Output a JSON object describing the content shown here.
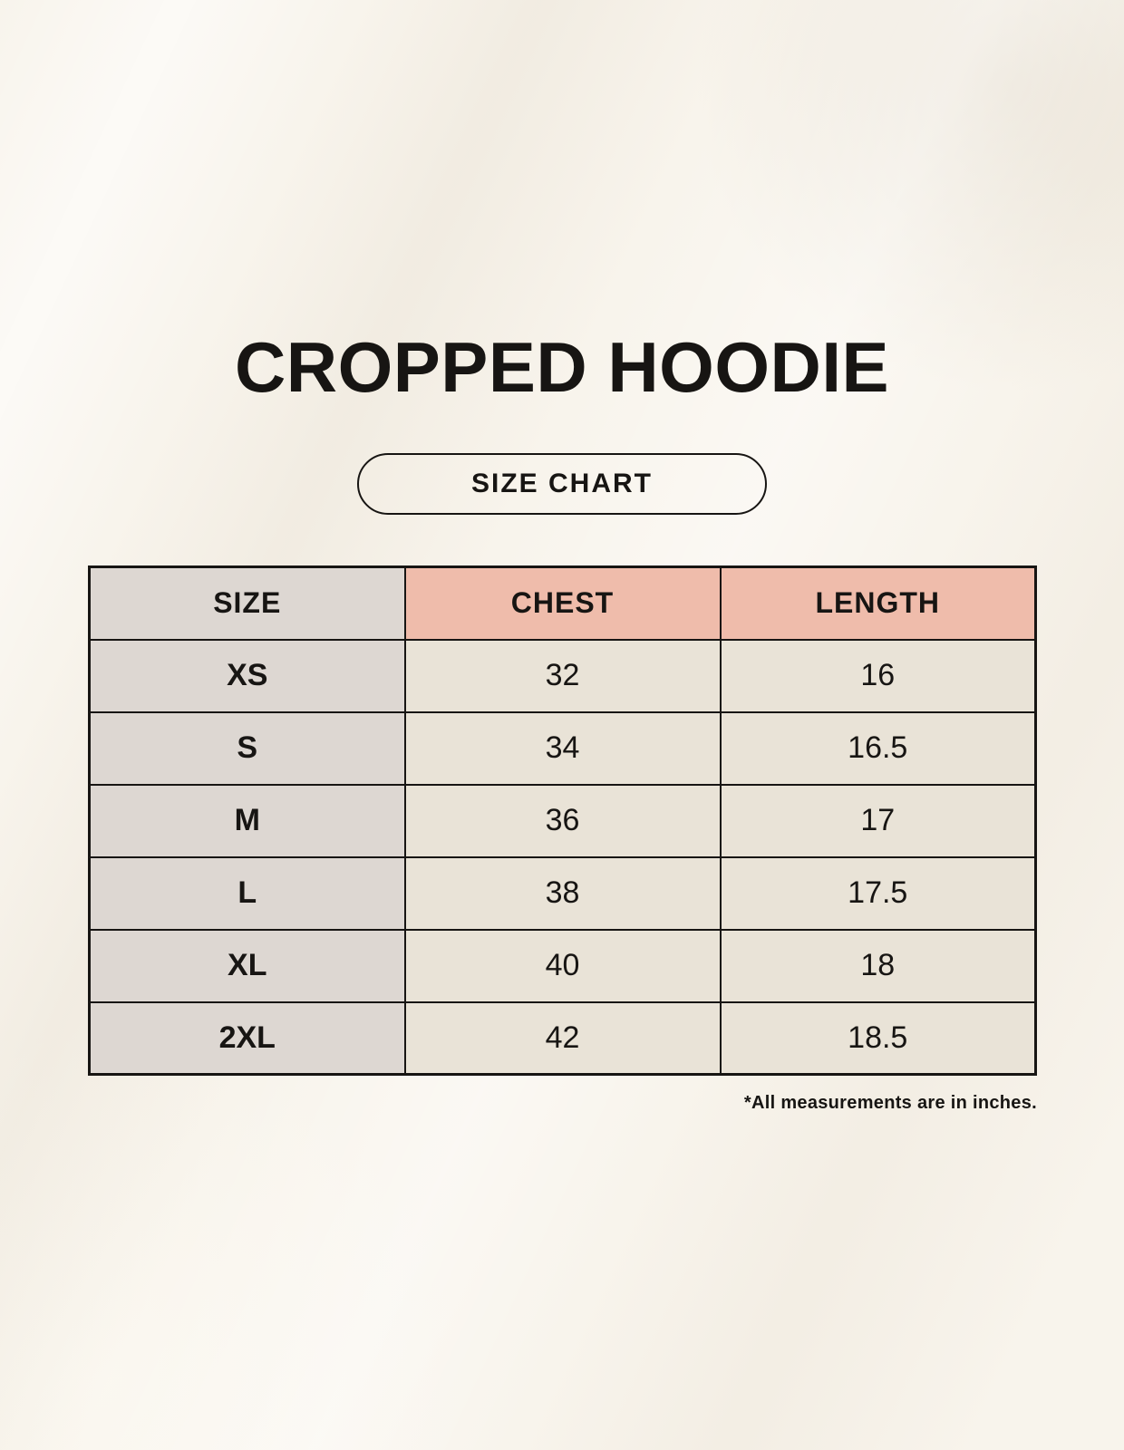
{
  "title": "CROPPED HOODIE",
  "size_chart_label": "SIZE CHART",
  "footnote": "*All measurements are in inches.",
  "colors": {
    "background": "#f8f4ec",
    "header_accent": "#efbcab",
    "size_column": "#ddd7d2",
    "cell": "#e9e3d7",
    "border": "#171513",
    "text": "#171513"
  },
  "table": {
    "headers": [
      "SIZE",
      "CHEST",
      "LENGTH"
    ],
    "rows": [
      {
        "size": "XS",
        "chest": "32",
        "length": "16"
      },
      {
        "size": "S",
        "chest": "34",
        "length": "16.5"
      },
      {
        "size": "M",
        "chest": "36",
        "length": "17"
      },
      {
        "size": "L",
        "chest": "38",
        "length": "17.5"
      },
      {
        "size": "XL",
        "chest": "40",
        "length": "18"
      },
      {
        "size": "2XL",
        "chest": "42",
        "length": "18.5"
      }
    ]
  },
  "chart_data": {
    "type": "table",
    "title": "CROPPED HOODIE",
    "subtitle": "SIZE CHART",
    "columns": [
      "SIZE",
      "CHEST",
      "LENGTH"
    ],
    "rows": [
      [
        "XS",
        32,
        16
      ],
      [
        "S",
        34,
        16.5
      ],
      [
        "M",
        36,
        17
      ],
      [
        "L",
        38,
        17.5
      ],
      [
        "XL",
        40,
        18
      ],
      [
        "2XL",
        42,
        18.5
      ]
    ],
    "units": "inches",
    "note": "*All measurements are in inches."
  }
}
